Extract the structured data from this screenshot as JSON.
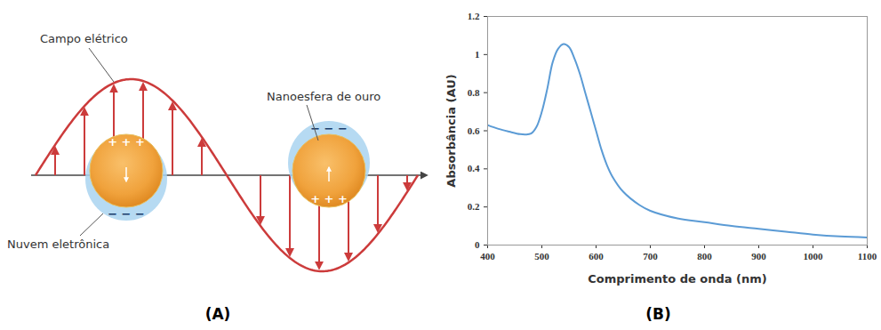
{
  "panel_a": {
    "label": "(A)",
    "electric_field_label": "Campo elétrico",
    "nanosphere_label": "Nanoesfera de ouro",
    "electron_cloud_label": "Nuvem eletrônica",
    "charge_labels": {
      "positive": "+ + +",
      "negative": "− − −"
    }
  },
  "chart_data": {
    "type": "line",
    "panel_label": "(B)",
    "x_label": "Comprimento de onda (nm)",
    "y_label": "Absorbância (AU)",
    "x": [
      400,
      420,
      440,
      460,
      470,
      480,
      490,
      500,
      510,
      520,
      530,
      540,
      550,
      560,
      570,
      580,
      590,
      600,
      610,
      620,
      630,
      650,
      680,
      700,
      750,
      800,
      850,
      900,
      950,
      1000,
      1050,
      1100
    ],
    "series": [
      {
        "name": "Absorbância",
        "color": "#5b9bd5",
        "values": [
          0.63,
          0.61,
          0.595,
          0.582,
          0.58,
          0.585,
          0.62,
          0.7,
          0.82,
          0.96,
          1.03,
          1.055,
          1.04,
          0.98,
          0.9,
          0.8,
          0.7,
          0.6,
          0.5,
          0.42,
          0.36,
          0.28,
          0.21,
          0.18,
          0.14,
          0.12,
          0.1,
          0.085,
          0.07,
          0.055,
          0.045,
          0.04
        ]
      }
    ],
    "xlim": [
      400,
      1100
    ],
    "xticks": [
      400,
      500,
      600,
      700,
      800,
      900,
      1000,
      1100
    ],
    "ylim": [
      0,
      1.2
    ],
    "yticks": [
      0,
      0.2,
      0.4,
      0.6,
      0.8,
      1,
      1.2
    ],
    "grid": false
  }
}
